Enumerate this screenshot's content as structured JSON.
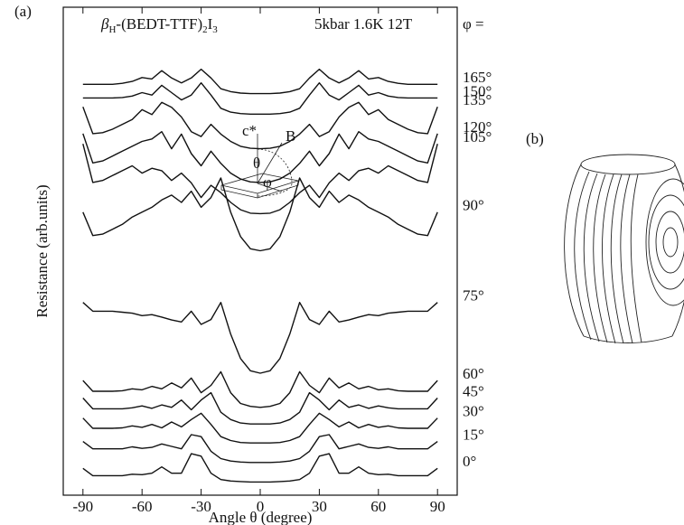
{
  "chart_data": {
    "type": "line",
    "panel_a": "(a)",
    "panel_b": "(b)",
    "title": [
      "β",
      "H",
      "-(BEDT-TTF)",
      "2",
      "I",
      "3"
    ],
    "conditions": "5kbar 1.6K 12T",
    "legend_title": "φ =",
    "x_label": "Angle θ (degree)",
    "y_label": "Resistance (arb.units)",
    "inset": {
      "c_axis": "c*",
      "field": "B",
      "theta": "θ",
      "phi": "φ"
    },
    "xlim": [
      -100,
      100
    ],
    "ylim": [
      0,
      100
    ],
    "xticks": [
      -90,
      -60,
      -30,
      0,
      30,
      60,
      90
    ],
    "x": [
      -90,
      -85,
      -80,
      -75,
      -70,
      -65,
      -60,
      -55,
      -50,
      -45,
      -40,
      -35,
      -30,
      -25,
      -20,
      -15,
      -10,
      -5,
      0,
      5,
      10,
      15,
      20,
      25,
      30,
      35,
      40,
      45,
      50,
      55,
      60,
      65,
      70,
      75,
      80,
      85,
      90
    ],
    "series": [
      {
        "name": "165°",
        "color": "#111",
        "values": [
          84.2,
          84.2,
          84.2,
          84.2,
          84.4,
          84.8,
          85.6,
          85.3,
          87.0,
          85.5,
          84.5,
          85.5,
          87.3,
          85.5,
          83.3,
          82.7,
          82.4,
          82.3,
          82.3,
          82.3,
          82.4,
          82.7,
          83.3,
          85.5,
          87.3,
          85.5,
          84.5,
          85.5,
          87.0,
          85.3,
          85.6,
          84.8,
          84.4,
          84.2,
          84.2,
          84.2,
          84.2
        ]
      },
      {
        "name": "150°",
        "color": "#111",
        "values": [
          81.4,
          81.4,
          81.4,
          81.4,
          81.5,
          81.8,
          82.5,
          82.0,
          84.0,
          82.5,
          81.0,
          82.0,
          84.5,
          82.0,
          79.3,
          78.5,
          78.2,
          78.1,
          78.1,
          78.1,
          78.2,
          78.5,
          79.3,
          82.0,
          84.5,
          82.0,
          81.0,
          82.5,
          84.0,
          82.0,
          82.5,
          81.8,
          81.5,
          81.4,
          81.4,
          81.4,
          81.4
        ]
      },
      {
        "name": "135°",
        "color": "#111",
        "values": [
          79.6,
          74.1,
          74.3,
          75.0,
          76.0,
          77.0,
          79.0,
          78.0,
          80.5,
          79.5,
          77.5,
          74.5,
          73.5,
          76.0,
          74.0,
          72.5,
          71.5,
          71.1,
          71.0,
          71.1,
          71.5,
          72.5,
          74.0,
          76.0,
          73.5,
          74.5,
          77.5,
          79.5,
          80.5,
          78.0,
          79.0,
          77.0,
          76.0,
          75.0,
          74.3,
          74.1,
          79.6
        ]
      },
      {
        "name": "120°",
        "color": "#111",
        "values": [
          74.1,
          68.1,
          68.5,
          69.5,
          70.5,
          71.5,
          72.5,
          73.0,
          74.5,
          71.0,
          74.0,
          70.0,
          67.5,
          70.5,
          68.0,
          66.0,
          64.8,
          64.2,
          64.1,
          64.2,
          64.8,
          66.0,
          68.0,
          70.5,
          67.5,
          70.0,
          74.0,
          71.0,
          74.5,
          73.0,
          72.5,
          71.5,
          70.5,
          69.5,
          68.5,
          68.1,
          74.1
        ]
      },
      {
        "name": "105°",
        "color": "#111",
        "values": [
          72.0,
          64.1,
          64.5,
          65.5,
          66.5,
          67.5,
          66.0,
          67.0,
          66.5,
          64.5,
          66.0,
          64.0,
          61.0,
          63.5,
          62.0,
          60.0,
          58.5,
          57.8,
          57.7,
          57.8,
          58.5,
          60.0,
          62.0,
          63.5,
          61.0,
          64.0,
          66.0,
          64.5,
          66.5,
          67.0,
          66.0,
          67.5,
          66.5,
          65.5,
          64.5,
          64.1,
          72.0
        ]
      },
      {
        "name": "90°",
        "color": "#111",
        "values": [
          58.0,
          53.2,
          53.5,
          54.5,
          55.5,
          57.0,
          58.0,
          59.0,
          60.5,
          61.5,
          60.0,
          62.3,
          59.0,
          61.0,
          65.0,
          58.0,
          53.0,
          50.5,
          50.1,
          50.5,
          53.0,
          58.0,
          65.0,
          61.0,
          59.0,
          62.3,
          60.0,
          61.5,
          60.5,
          59.0,
          58.0,
          57.0,
          55.5,
          54.5,
          53.5,
          53.2,
          58.0
        ]
      },
      {
        "name": "75°",
        "color": "#111",
        "values": [
          39.5,
          37.7,
          37.7,
          37.7,
          37.5,
          37.3,
          36.8,
          37.0,
          36.5,
          35.9,
          35.5,
          37.7,
          35.0,
          36.0,
          39.5,
          33.0,
          28.0,
          25.5,
          25.0,
          25.5,
          28.0,
          33.0,
          39.5,
          36.0,
          35.0,
          37.7,
          35.5,
          35.9,
          36.5,
          37.0,
          36.8,
          37.3,
          37.5,
          37.7,
          37.7,
          37.7,
          39.5
        ]
      },
      {
        "name": "60°",
        "color": "#111",
        "values": [
          23.5,
          21.3,
          21.3,
          21.3,
          21.4,
          21.8,
          21.6,
          22.3,
          21.8,
          23.0,
          22.0,
          24.0,
          21.0,
          22.5,
          25.3,
          21.0,
          18.8,
          18.2,
          18.0,
          18.2,
          18.8,
          21.0,
          25.3,
          22.5,
          21.0,
          24.0,
          22.0,
          23.0,
          21.8,
          22.3,
          21.6,
          21.8,
          21.4,
          21.3,
          21.3,
          21.3,
          23.5
        ]
      },
      {
        "name": "45°",
        "color": "#111",
        "values": [
          19.9,
          17.7,
          17.7,
          17.7,
          17.7,
          17.9,
          18.3,
          17.8,
          18.5,
          18.0,
          19.5,
          17.5,
          19.5,
          21.0,
          17.0,
          15.5,
          14.8,
          14.6,
          14.6,
          14.6,
          14.8,
          15.5,
          17.0,
          21.0,
          19.5,
          17.5,
          19.5,
          18.0,
          18.5,
          17.8,
          18.3,
          17.9,
          17.7,
          17.7,
          17.7,
          17.7,
          19.9
        ]
      },
      {
        "name": "30°",
        "color": "#111",
        "values": [
          15.8,
          13.7,
          13.7,
          13.7,
          13.8,
          14.2,
          13.9,
          14.5,
          13.8,
          15.0,
          14.0,
          15.5,
          16.8,
          14.5,
          12.0,
          11.2,
          10.8,
          10.7,
          10.7,
          10.7,
          10.8,
          11.2,
          12.0,
          14.5,
          16.8,
          15.5,
          14.0,
          15.0,
          13.8,
          14.5,
          13.9,
          14.2,
          13.8,
          13.7,
          13.7,
          13.7,
          15.8
        ]
      },
      {
        "name": "15°",
        "color": "#111",
        "values": [
          11.0,
          9.5,
          9.5,
          9.5,
          9.5,
          9.9,
          9.6,
          9.8,
          10.5,
          10.0,
          9.5,
          12.4,
          12.0,
          9.0,
          7.5,
          7.0,
          6.8,
          6.7,
          6.7,
          6.7,
          6.8,
          7.0,
          7.5,
          9.0,
          12.0,
          12.4,
          9.5,
          10.0,
          10.5,
          9.8,
          9.6,
          9.9,
          9.5,
          9.5,
          9.5,
          9.5,
          11.0
        ]
      },
      {
        "name": "0°",
        "color": "#111",
        "values": [
          5.5,
          4.0,
          4.0,
          4.0,
          4.0,
          4.3,
          4.2,
          4.5,
          5.8,
          4.5,
          4.5,
          8.5,
          8.0,
          4.5,
          3.2,
          2.9,
          2.8,
          2.7,
          2.7,
          2.7,
          2.8,
          2.9,
          3.2,
          4.5,
          8.0,
          8.5,
          4.5,
          4.5,
          5.8,
          4.5,
          4.2,
          4.3,
          4.0,
          4.0,
          4.0,
          4.0,
          5.5
        ]
      }
    ]
  }
}
